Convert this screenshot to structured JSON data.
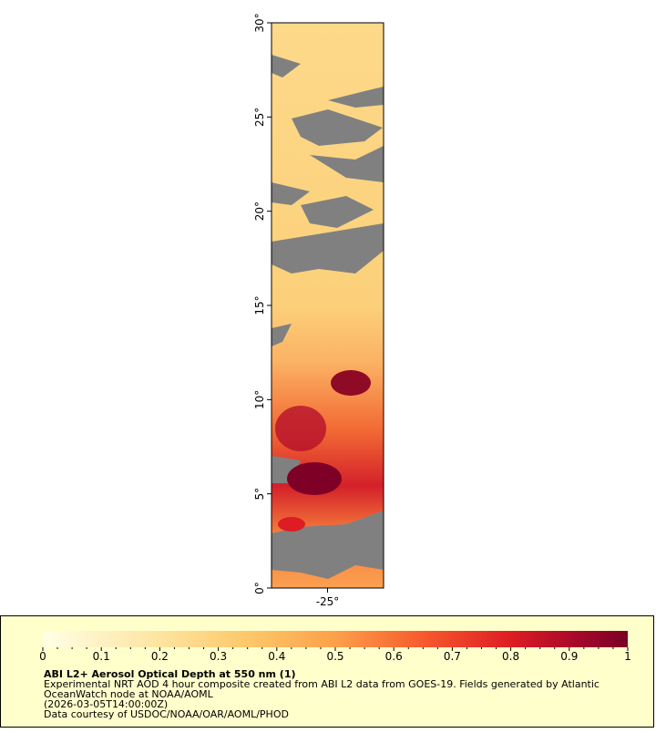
{
  "map": {
    "lat_axis": {
      "ylim": [
        0,
        30
      ],
      "ticks": [
        {
          "value": 0,
          "label": "0°"
        },
        {
          "value": 5,
          "label": "5°"
        },
        {
          "value": 10,
          "label": "10°"
        },
        {
          "value": 15,
          "label": "15°"
        },
        {
          "value": 20,
          "label": "20°"
        },
        {
          "value": 25,
          "label": "25°"
        },
        {
          "value": 30,
          "label": "30°"
        }
      ]
    },
    "lon_axis": {
      "xlim": [
        -28,
        -22
      ],
      "ticks": [
        {
          "value": -25,
          "label": "-25°"
        }
      ]
    }
  },
  "colorbar": {
    "lim": [
      0,
      1
    ],
    "ticks": [
      0,
      0.1,
      0.2,
      0.3,
      0.4,
      0.5,
      0.6,
      0.7,
      0.8,
      0.9,
      1
    ]
  },
  "legend": {
    "title": "ABI L2+ Aerosol Optical Depth at 550 nm (1)",
    "lines": [
      "Experimental NRT AOD 4 hour composite created from ABI L2 data from GOES-19. Fields generated by Atlantic",
      "OceanWatch node at NOAA/AOML",
      "(2026-03-05T14:00:00Z)",
      "Data courtesy of USDOC/NOAA/OAR/AOML/PHOD"
    ]
  }
}
